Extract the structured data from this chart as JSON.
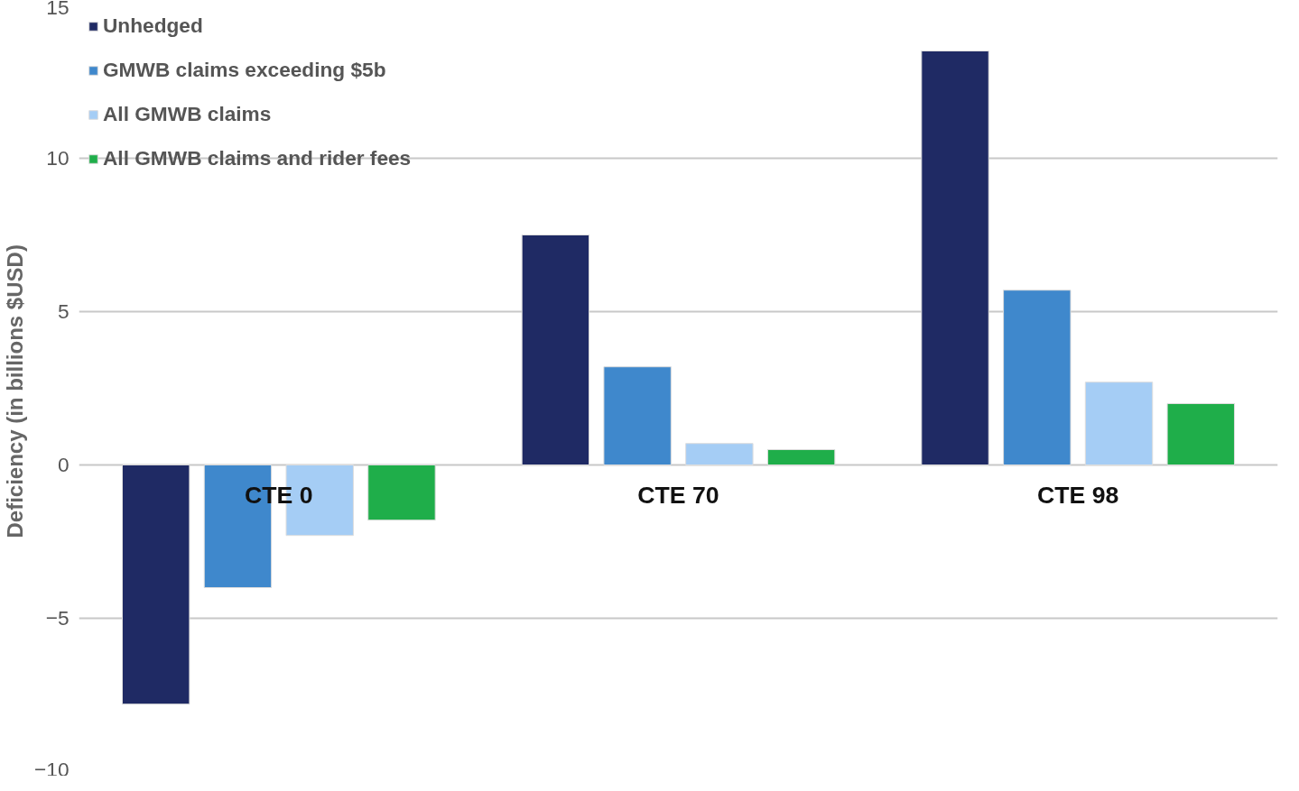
{
  "chart_data": {
    "type": "bar",
    "ylabel": "Deficiency (in billions  $USD)",
    "categories": [
      "CTE 0",
      "CTE 70",
      "CTE 98"
    ],
    "series": [
      {
        "name": "Unhedged",
        "color": "#1f2a64",
        "values": [
          -7.8,
          7.5,
          13.5
        ]
      },
      {
        "name": "GMWB claims exceeding $5b",
        "color": "#3f88cc",
        "values": [
          -4.0,
          3.2,
          5.7
        ]
      },
      {
        "name": "All GMWB claims",
        "color": "#a5cdf5",
        "values": [
          -2.3,
          0.7,
          2.7
        ]
      },
      {
        "name": "All GMWB claims and rider fees",
        "color": "#1fae4a",
        "values": [
          -1.8,
          0.5,
          2.0
        ]
      }
    ],
    "ylim": [
      -10,
      15
    ],
    "yticks": [
      -10,
      -5,
      0,
      5,
      10,
      15
    ],
    "grid": "y",
    "legend": "top left"
  }
}
